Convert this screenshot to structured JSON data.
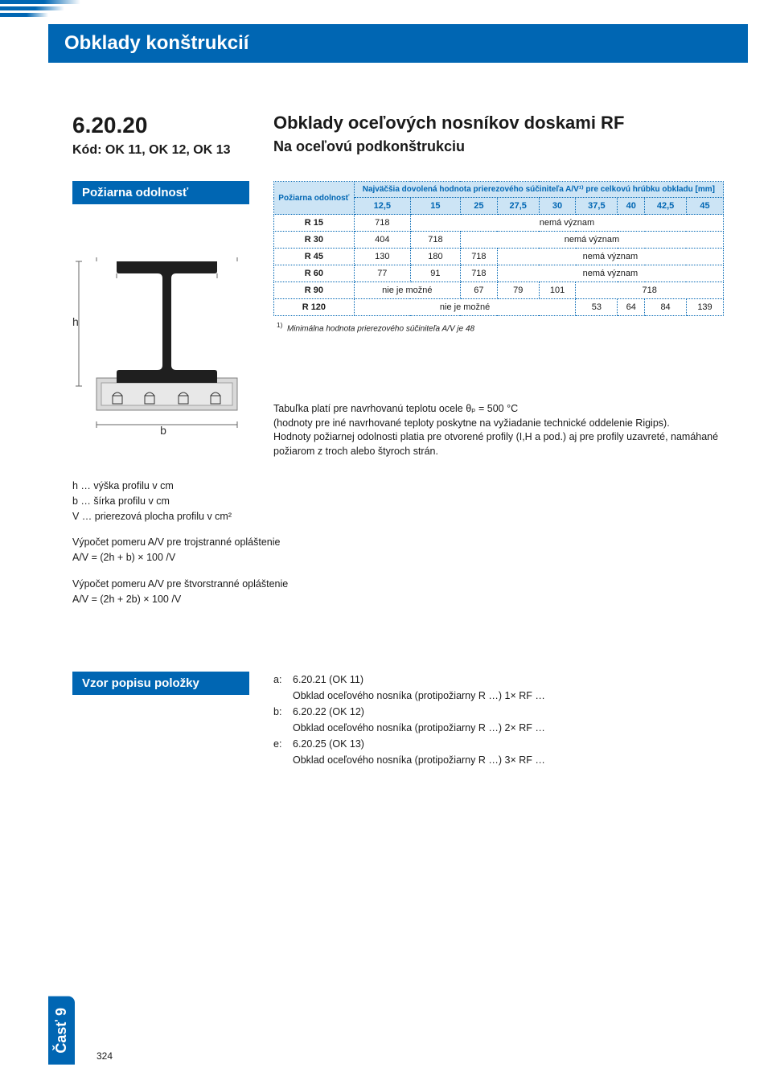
{
  "colors": {
    "brand": "#0066b3",
    "brand_light": "#cce4f5",
    "text": "#1a1a1a",
    "bg": "#ffffff",
    "table_border": "#0066b3"
  },
  "header": {
    "title": "Obklady konštrukcií"
  },
  "section": {
    "number": "6.20.20",
    "code": "Kód: OK 11, OK 12, OK 13",
    "title": "Obklady oceľových nosníkov doskami RF",
    "subtitle": "Na oceľovú podkonštrukciu"
  },
  "fire_label": "Požiarna odolnosť",
  "table": {
    "rowhead": "Požiarna odolnosť",
    "superhead": "Najväčšia dovolená hodnota prierezového súčiniteľa A/V¹⁾\npre celkovú hrúbku obkladu [mm]",
    "columns": [
      "12,5",
      "15",
      "25",
      "27,5",
      "30",
      "37,5",
      "40",
      "42,5",
      "45"
    ],
    "rows": [
      {
        "label": "R 15",
        "cells": [
          {
            "v": "718"
          },
          {
            "span": 8,
            "v": "nemá význam"
          }
        ]
      },
      {
        "label": "R 30",
        "cells": [
          {
            "v": "404"
          },
          {
            "v": "718"
          },
          {
            "span": 7,
            "v": "nemá význam"
          }
        ]
      },
      {
        "label": "R 45",
        "cells": [
          {
            "v": "130"
          },
          {
            "v": "180"
          },
          {
            "v": "718"
          },
          {
            "span": 6,
            "v": "nemá význam"
          }
        ]
      },
      {
        "label": "R 60",
        "cells": [
          {
            "v": "77"
          },
          {
            "v": "91"
          },
          {
            "v": "718"
          },
          {
            "span": 6,
            "v": "nemá význam"
          }
        ]
      },
      {
        "label": "R 90",
        "cells": [
          {
            "span": 2,
            "v": "nie je možné"
          },
          {
            "v": "67"
          },
          {
            "v": "79"
          },
          {
            "v": "101"
          },
          {
            "span": 4,
            "v": "718"
          }
        ]
      },
      {
        "label": "R 120",
        "cells": [
          {
            "span": 5,
            "v": "nie je možné"
          },
          {
            "v": "53"
          },
          {
            "v": "64"
          },
          {
            "v": "84"
          },
          {
            "v": "139"
          }
        ]
      }
    ],
    "footnote_mark": "1)",
    "footnote": "Minimálna hodnota prierezového súčiniteľa A/V je 48"
  },
  "diagram": {
    "h_label": "h",
    "b_label": "b",
    "beam_fill": "#1f1f1f",
    "cladding_fill": "#d9d9d9",
    "cladding_stroke": "#808080",
    "dim_color": "#666666",
    "profile_stroke": "#333333"
  },
  "note": {
    "l1": "Tabuľka platí pre navrhovanú teplotu ocele θₚ = 500 °C",
    "l2": "(hodnoty pre iné navrhované teploty poskytne na vyžiadanie technické oddelenie Rigips).",
    "l3": "Hodnoty požiarnej odolnosti platia pre otvorené profily (I,H a pod.) aj pre profily uzavreté, namáhané požiarom z troch alebo štyroch strán."
  },
  "calc": {
    "l1": "h … výška profilu v cm",
    "l2": "b … šírka profilu v cm",
    "l3": "V … prierezová plocha profilu v cm²",
    "t3_title": "Výpočet pomeru A/V pre trojstranné opláštenie",
    "t3_formula": "A/V = (2h + b) × 100 /V",
    "t4_title": "Výpočet pomeru A/V pre štvorstranné opláštenie",
    "t4_formula": "A/V = (2h + 2b) × 100 /V"
  },
  "vzor_label": "Vzor popisu položky",
  "vzor": {
    "a_k": "a:",
    "a1": "6.20.21 (OK 11)",
    "a2": "Obklad oceľového nosníka (protipožiarny R …) 1× RF …",
    "b_k": "b:",
    "b1": "6.20.22 (OK 12)",
    "b2": "Obklad oceľového nosníka (protipožiarny R …) 2× RF …",
    "e_k": "e:",
    "e1": "6.20.25 (OK 13)",
    "e2": "Obklad oceľového nosníka (protipožiarny R …) 3× RF …"
  },
  "side_tab": "Časť 9",
  "page_num": "324"
}
